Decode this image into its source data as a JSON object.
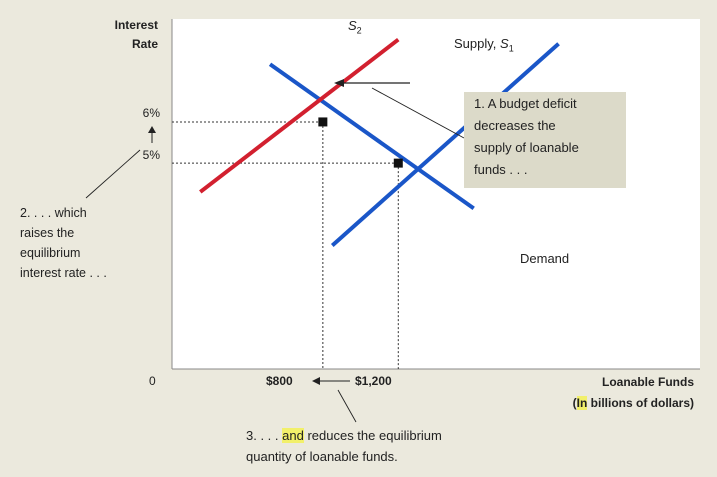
{
  "chart_data": {
    "type": "line",
    "title": "",
    "ylabel": [
      "Interest",
      "Rate"
    ],
    "xlabel": "Loanable Funds",
    "xlabel_unit_parts": [
      "(",
      "In",
      " billions of dollars)"
    ],
    "origin_label": "0",
    "ytick_labels": [
      "6%",
      "5%"
    ],
    "xtick_labels": [
      "$800",
      "$1,200"
    ],
    "series": [
      {
        "name": "Demand",
        "color": "#1a56c8",
        "points": [
          [
            520,
            7.4
          ],
          [
            1600,
            3.9
          ]
        ]
      },
      {
        "name_parts": [
          "Supply, ",
          "S",
          "1"
        ],
        "color": "#1a56c8",
        "points": [
          [
            850,
            3.0
          ],
          [
            2050,
            7.9
          ]
        ]
      },
      {
        "name_parts": [
          "S",
          "2"
        ],
        "color": "#d2202f",
        "points": [
          [
            150,
            4.3
          ],
          [
            1200,
            8.0
          ]
        ]
      }
    ],
    "equilibria": [
      {
        "x": 800,
        "y": 6,
        "label_x": "$800",
        "label_y": "6%"
      },
      {
        "x": 1200,
        "y": 5,
        "label_x": "$1,200",
        "label_y": "5%"
      }
    ],
    "xlim": [
      0,
      2800
    ],
    "ylim": [
      0,
      8.5
    ],
    "annotations": {
      "note1": [
        "1. A budget deficit",
        "decreases the",
        "supply of loanable",
        "funds . . ."
      ],
      "note2": [
        "2. . . . which",
        "raises the",
        "equilibrium",
        "interest rate . . ."
      ],
      "note3_parts": [
        "3. . . . ",
        "and",
        " reduces the equilibrium"
      ],
      "note3_line2": "quantity of loanable funds."
    },
    "colors": {
      "background": "#ebe9dd",
      "plot_area": "#ffffff",
      "note_box": "#dcdac9",
      "demand": "#1a56c8",
      "supply": "#1a56c8",
      "supply_shifted": "#d2202f",
      "highlight": "#f2f06a"
    }
  }
}
